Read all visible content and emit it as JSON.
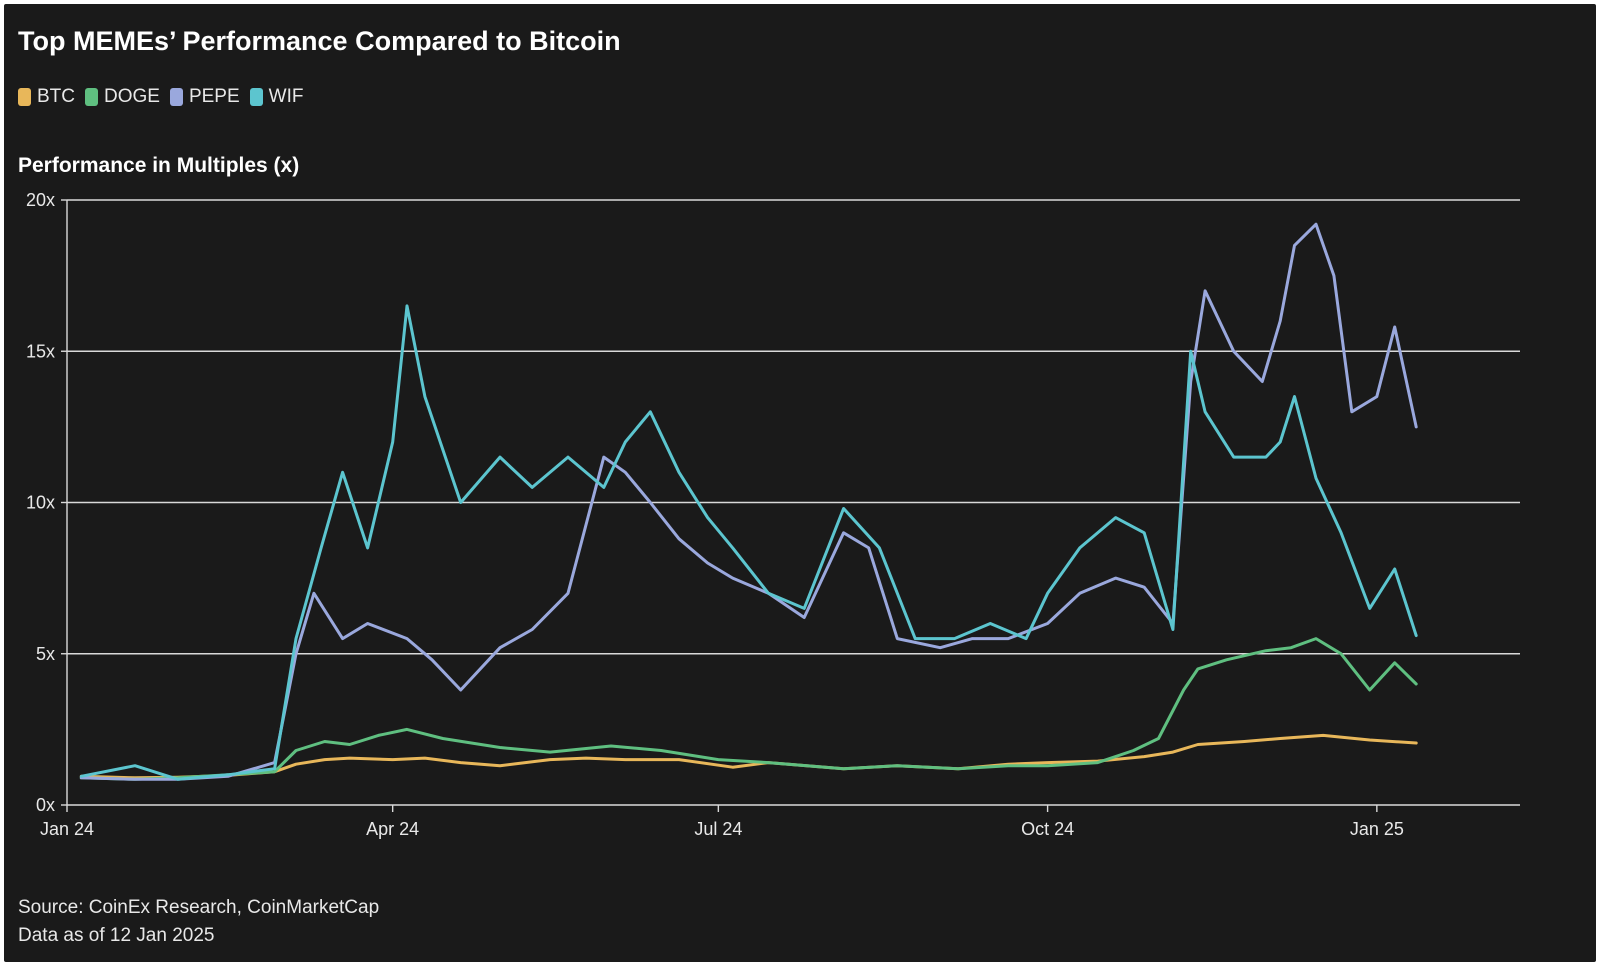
{
  "chart_data": {
    "type": "line",
    "title": "Top MEMEs’ Performance Compared to Bitcoin",
    "ylabel": "Performance in Multiples (x)",
    "xlabel": "",
    "ylim": [
      0,
      20
    ],
    "y_ticks": [
      "0x",
      "5x",
      "10x",
      "15x",
      "20x"
    ],
    "y_tick_values": [
      0,
      5,
      10,
      15,
      20
    ],
    "x_ticks": [
      "Jan 24",
      "Apr 24",
      "Jul 24",
      "Oct 24",
      "Jan 25"
    ],
    "x_tick_dates": [
      "2024-01-01",
      "2024-04-01",
      "2024-07-01",
      "2024-10-01",
      "2025-01-01"
    ],
    "x_range": [
      "2024-01-01",
      "2025-02-10"
    ],
    "grid": "horizontal",
    "legend_position": "top-left",
    "series": [
      {
        "name": "BTC",
        "color": "#e8b75a",
        "x": [
          "2024-01-05",
          "2024-01-20",
          "2024-02-01",
          "2024-02-15",
          "2024-02-28",
          "2024-03-05",
          "2024-03-13",
          "2024-03-20",
          "2024-04-01",
          "2024-04-10",
          "2024-04-20",
          "2024-05-01",
          "2024-05-15",
          "2024-05-25",
          "2024-06-05",
          "2024-06-20",
          "2024-07-05",
          "2024-07-15",
          "2024-08-05",
          "2024-08-20",
          "2024-09-06",
          "2024-09-20",
          "2024-10-01",
          "2024-10-15",
          "2024-10-28",
          "2024-11-05",
          "2024-11-12",
          "2024-11-25",
          "2024-12-05",
          "2024-12-17",
          "2024-12-30",
          "2025-01-12"
        ],
        "y": [
          0.95,
          0.9,
          0.92,
          0.98,
          1.1,
          1.35,
          1.5,
          1.55,
          1.5,
          1.55,
          1.4,
          1.3,
          1.5,
          1.55,
          1.5,
          1.5,
          1.25,
          1.4,
          1.2,
          1.3,
          1.2,
          1.35,
          1.4,
          1.45,
          1.6,
          1.75,
          2.0,
          2.1,
          2.2,
          2.3,
          2.15,
          2.05
        ]
      },
      {
        "name": "DOGE",
        "color": "#5fbf80",
        "x": [
          "2024-01-05",
          "2024-01-20",
          "2024-02-01",
          "2024-02-15",
          "2024-02-28",
          "2024-03-05",
          "2024-03-13",
          "2024-03-20",
          "2024-03-28",
          "2024-04-05",
          "2024-04-15",
          "2024-05-01",
          "2024-05-15",
          "2024-06-01",
          "2024-06-15",
          "2024-07-01",
          "2024-07-15",
          "2024-08-05",
          "2024-08-20",
          "2024-09-06",
          "2024-09-20",
          "2024-10-01",
          "2024-10-15",
          "2024-10-25",
          "2024-11-01",
          "2024-11-08",
          "2024-11-12",
          "2024-11-20",
          "2024-12-01",
          "2024-12-08",
          "2024-12-15",
          "2024-12-22",
          "2024-12-30",
          "2025-01-06",
          "2025-01-12"
        ],
        "y": [
          0.9,
          0.85,
          0.9,
          1.0,
          1.1,
          1.8,
          2.1,
          2.0,
          2.3,
          2.5,
          2.2,
          1.9,
          1.75,
          1.95,
          1.8,
          1.5,
          1.4,
          1.2,
          1.3,
          1.2,
          1.3,
          1.3,
          1.4,
          1.8,
          2.2,
          3.8,
          4.5,
          4.8,
          5.1,
          5.2,
          5.5,
          5.0,
          3.8,
          4.7,
          4.0
        ]
      },
      {
        "name": "PEPE",
        "color": "#9aa8dd",
        "x": [
          "2024-01-05",
          "2024-01-20",
          "2024-02-01",
          "2024-02-15",
          "2024-02-28",
          "2024-03-05",
          "2024-03-10",
          "2024-03-18",
          "2024-03-25",
          "2024-04-05",
          "2024-04-12",
          "2024-04-20",
          "2024-05-01",
          "2024-05-10",
          "2024-05-20",
          "2024-05-30",
          "2024-06-05",
          "2024-06-12",
          "2024-06-20",
          "2024-06-28",
          "2024-07-05",
          "2024-07-15",
          "2024-07-25",
          "2024-08-05",
          "2024-08-12",
          "2024-08-20",
          "2024-09-01",
          "2024-09-10",
          "2024-09-20",
          "2024-10-01",
          "2024-10-10",
          "2024-10-20",
          "2024-10-28",
          "2024-11-05",
          "2024-11-10",
          "2024-11-14",
          "2024-11-22",
          "2024-11-30",
          "2024-12-05",
          "2024-12-09",
          "2024-12-15",
          "2024-12-20",
          "2024-12-25",
          "2025-01-01",
          "2025-01-06",
          "2025-01-12"
        ],
        "y": [
          0.9,
          0.85,
          0.85,
          0.95,
          1.4,
          5.0,
          7.0,
          5.5,
          6.0,
          5.5,
          4.8,
          3.8,
          5.2,
          5.8,
          7.0,
          11.5,
          11.0,
          10.0,
          8.8,
          8.0,
          7.5,
          7.0,
          6.2,
          9.0,
          8.5,
          5.5,
          5.2,
          5.5,
          5.5,
          6.0,
          7.0,
          7.5,
          7.2,
          6.0,
          14.0,
          17.0,
          15.0,
          14.0,
          16.0,
          18.5,
          19.2,
          17.5,
          13.0,
          13.5,
          15.8,
          12.5
        ]
      },
      {
        "name": "WIF",
        "color": "#5cc5cf",
        "x": [
          "2024-01-05",
          "2024-01-20",
          "2024-02-01",
          "2024-02-15",
          "2024-02-28",
          "2024-03-05",
          "2024-03-12",
          "2024-03-18",
          "2024-03-25",
          "2024-04-01",
          "2024-04-05",
          "2024-04-10",
          "2024-04-20",
          "2024-05-01",
          "2024-05-10",
          "2024-05-20",
          "2024-05-30",
          "2024-06-05",
          "2024-06-12",
          "2024-06-20",
          "2024-06-28",
          "2024-07-05",
          "2024-07-15",
          "2024-07-25",
          "2024-08-05",
          "2024-08-15",
          "2024-08-25",
          "2024-09-05",
          "2024-09-15",
          "2024-09-25",
          "2024-10-01",
          "2024-10-10",
          "2024-10-20",
          "2024-10-28",
          "2024-11-05",
          "2024-11-10",
          "2024-11-14",
          "2024-11-22",
          "2024-12-01",
          "2024-12-05",
          "2024-12-09",
          "2024-12-15",
          "2024-12-22",
          "2024-12-30",
          "2025-01-06",
          "2025-01-12"
        ],
        "y": [
          0.95,
          1.3,
          0.85,
          1.0,
          1.2,
          5.5,
          8.5,
          11.0,
          8.5,
          12.0,
          16.5,
          13.5,
          10.0,
          11.5,
          10.5,
          11.5,
          10.5,
          12.0,
          13.0,
          11.0,
          9.5,
          8.5,
          7.0,
          6.5,
          9.8,
          8.5,
          5.5,
          5.5,
          6.0,
          5.5,
          7.0,
          8.5,
          9.5,
          9.0,
          5.8,
          15.0,
          13.0,
          11.5,
          11.5,
          12.0,
          13.5,
          10.8,
          9.0,
          6.5,
          7.8,
          5.6
        ]
      }
    ],
    "source_lines": [
      "Source: CoinEx Research, CoinMarketCap",
      "Data as of 12 Jan 2025"
    ]
  }
}
